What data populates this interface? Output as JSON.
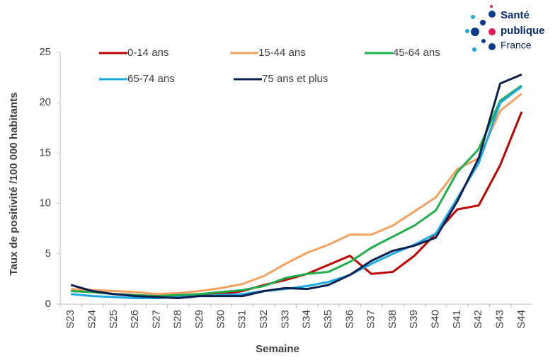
{
  "chart_data": {
    "type": "line",
    "x_label": "Semaine",
    "y_label": "Taux de positivité /100 000 habitants",
    "categories": [
      "S23",
      "S24",
      "S25",
      "S26",
      "S27",
      "S28",
      "S29",
      "S30",
      "S31",
      "S32",
      "S33",
      "S34",
      "S35",
      "S36",
      "S37",
      "S38",
      "S39",
      "S40",
      "S41",
      "S42",
      "S43",
      "S44"
    ],
    "series": [
      {
        "name": "0-14 ans",
        "color": "#c00000",
        "values": [
          1.3,
          1.2,
          1.0,
          0.9,
          0.8,
          0.8,
          0.9,
          1.0,
          1.3,
          1.9,
          2.4,
          3.0,
          3.9,
          4.8,
          3.0,
          3.2,
          4.8,
          7.0,
          9.4,
          9.8,
          13.8,
          19.1
        ]
      },
      {
        "name": "15-44 ans",
        "color": "#f4a15d",
        "values": [
          1.5,
          1.4,
          1.3,
          1.2,
          1.0,
          1.1,
          1.3,
          1.6,
          2.0,
          2.8,
          4.0,
          5.1,
          5.9,
          6.9,
          6.9,
          7.8,
          9.2,
          10.6,
          13.4,
          14.5,
          19.2,
          20.9
        ]
      },
      {
        "name": "45-64 ans",
        "color": "#1fae4b",
        "values": [
          1.3,
          1.2,
          1.0,
          0.9,
          0.8,
          0.9,
          1.0,
          1.2,
          1.4,
          1.8,
          2.6,
          3.0,
          3.2,
          4.2,
          5.6,
          6.7,
          7.8,
          9.3,
          13.1,
          15.4,
          20.2,
          21.7
        ]
      },
      {
        "name": "65-74 ans",
        "color": "#1ba9e1",
        "values": [
          1.0,
          0.8,
          0.7,
          0.6,
          0.6,
          0.7,
          0.8,
          0.9,
          1.0,
          1.3,
          1.5,
          1.8,
          2.2,
          2.9,
          4.0,
          5.0,
          5.9,
          7.0,
          10.5,
          14.0,
          20.0,
          21.6
        ]
      },
      {
        "name": "75 ans et plus",
        "color": "#0b1f4f",
        "values": [
          1.9,
          1.3,
          1.0,
          0.8,
          0.7,
          0.6,
          0.8,
          0.8,
          0.8,
          1.3,
          1.6,
          1.5,
          1.9,
          2.9,
          4.3,
          5.3,
          5.8,
          6.6,
          10.2,
          14.5,
          21.9,
          22.8
        ]
      }
    ],
    "ylim": [
      0,
      25
    ],
    "yticks": [
      0,
      5,
      10,
      15,
      20,
      25
    ],
    "grid": false
  },
  "logo": {
    "line1": "Santé",
    "line2": "publique",
    "line3": "France"
  }
}
